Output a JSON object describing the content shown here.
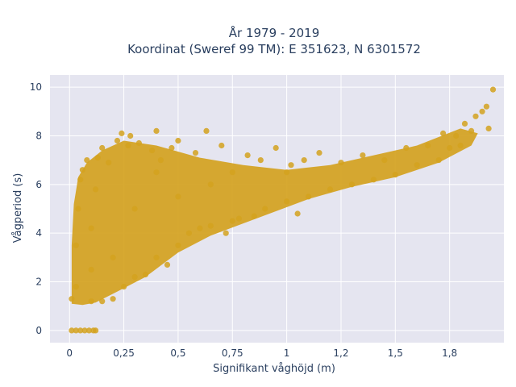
{
  "chart_data": {
    "type": "scatter",
    "title": "År 1979 - 2019",
    "subtitle": "Koordinat (Sweref 99 TM): E 351623, N 6301572",
    "xlabel": "Signifikant våghöjd (m)",
    "ylabel": "Vågperiod (s)",
    "xlim": [
      -0.09,
      2.0
    ],
    "ylim": [
      -0.5,
      10.5
    ],
    "x_ticks": [
      0,
      0.25,
      0.5,
      0.75,
      1,
      1.25,
      1.5,
      1.75
    ],
    "x_tick_labels": [
      "0",
      "0,25",
      "0,5",
      "0,75",
      "1",
      "1,2",
      "1,5",
      "1,8"
    ],
    "y_ticks": [
      0,
      2,
      4,
      6,
      8,
      10
    ],
    "y_tick_labels": [
      "0",
      "2",
      "4",
      "6",
      "8",
      "10"
    ],
    "grid": true,
    "legend": "none",
    "marker_color": "#d4a21f",
    "plot_background": "#e5e5f0",
    "series": [
      {
        "values": [
          [
            0.01,
            0
          ],
          [
            0.03,
            0
          ],
          [
            0.05,
            0
          ],
          [
            0.07,
            0
          ],
          [
            0.09,
            0
          ],
          [
            0.11,
            0
          ],
          [
            0.12,
            0
          ],
          [
            0.01,
            1.3
          ],
          [
            0.03,
            1.8
          ],
          [
            0.03,
            3.5
          ],
          [
            0.04,
            5.0
          ],
          [
            0.05,
            6.2
          ],
          [
            0.06,
            6.6
          ],
          [
            0.08,
            7.0
          ],
          [
            0.1,
            1.2
          ],
          [
            0.1,
            2.5
          ],
          [
            0.1,
            4.2
          ],
          [
            0.12,
            5.8
          ],
          [
            0.13,
            7.1
          ],
          [
            0.15,
            1.2
          ],
          [
            0.15,
            7.5
          ],
          [
            0.18,
            6.9
          ],
          [
            0.2,
            1.3
          ],
          [
            0.2,
            3.0
          ],
          [
            0.22,
            7.8
          ],
          [
            0.24,
            8.1
          ],
          [
            0.25,
            1.8
          ],
          [
            0.27,
            7.6
          ],
          [
            0.28,
            8.0
          ],
          [
            0.3,
            2.2
          ],
          [
            0.3,
            5.0
          ],
          [
            0.32,
            7.7
          ],
          [
            0.35,
            2.3
          ],
          [
            0.38,
            7.4
          ],
          [
            0.4,
            3.0
          ],
          [
            0.4,
            6.5
          ],
          [
            0.4,
            8.2
          ],
          [
            0.42,
            7.0
          ],
          [
            0.45,
            2.7
          ],
          [
            0.47,
            7.5
          ],
          [
            0.5,
            3.5
          ],
          [
            0.5,
            5.5
          ],
          [
            0.5,
            7.8
          ],
          [
            0.55,
            4.0
          ],
          [
            0.58,
            7.3
          ],
          [
            0.6,
            4.2
          ],
          [
            0.63,
            8.2
          ],
          [
            0.65,
            4.3
          ],
          [
            0.65,
            6.0
          ],
          [
            0.7,
            7.6
          ],
          [
            0.72,
            4.0
          ],
          [
            0.75,
            4.5
          ],
          [
            0.75,
            6.5
          ],
          [
            0.78,
            4.6
          ],
          [
            0.82,
            7.2
          ],
          [
            0.85,
            4.7
          ],
          [
            0.88,
            7.0
          ],
          [
            0.9,
            5.0
          ],
          [
            0.95,
            7.5
          ],
          [
            1.0,
            5.3
          ],
          [
            1.0,
            6.5
          ],
          [
            1.02,
            6.8
          ],
          [
            1.05,
            4.8
          ],
          [
            1.08,
            7.0
          ],
          [
            1.1,
            5.5
          ],
          [
            1.15,
            7.3
          ],
          [
            1.2,
            5.8
          ],
          [
            1.25,
            6.9
          ],
          [
            1.3,
            6.0
          ],
          [
            1.35,
            7.2
          ],
          [
            1.4,
            6.2
          ],
          [
            1.45,
            7.0
          ],
          [
            1.5,
            6.4
          ],
          [
            1.55,
            7.5
          ],
          [
            1.6,
            6.8
          ],
          [
            1.65,
            7.6
          ],
          [
            1.7,
            7.0
          ],
          [
            1.72,
            8.1
          ],
          [
            1.75,
            7.5
          ],
          [
            1.78,
            8.0
          ],
          [
            1.8,
            7.6
          ],
          [
            1.82,
            8.5
          ],
          [
            1.85,
            8.2
          ],
          [
            1.87,
            8.8
          ],
          [
            1.9,
            9.0
          ],
          [
            1.92,
            9.2
          ],
          [
            1.93,
            8.3
          ],
          [
            1.95,
            9.9
          ]
        ]
      }
    ]
  }
}
